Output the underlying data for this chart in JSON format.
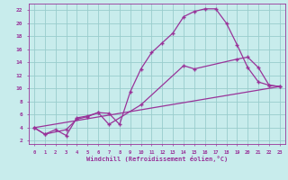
{
  "xlabel": "Windchill (Refroidissement éolien,°C)",
  "bg_color": "#c8ecec",
  "line_color": "#993399",
  "grid_color": "#99cccc",
  "x_ticks": [
    0,
    1,
    2,
    3,
    4,
    5,
    6,
    7,
    8,
    9,
    10,
    11,
    12,
    13,
    14,
    15,
    16,
    17,
    18,
    19,
    20,
    21,
    22,
    23
  ],
  "y_ticks": [
    2,
    4,
    6,
    8,
    10,
    12,
    14,
    16,
    18,
    20,
    22
  ],
  "xlim": [
    -0.5,
    23.5
  ],
  "ylim": [
    1.5,
    23.0
  ],
  "line1_x": [
    0,
    1,
    2,
    3,
    4,
    5,
    6,
    7,
    8,
    9,
    10,
    11,
    12,
    13,
    14,
    15,
    16,
    17,
    18,
    19,
    20,
    21,
    22,
    23
  ],
  "line1_y": [
    4.0,
    3.0,
    3.7,
    2.8,
    5.5,
    5.8,
    6.3,
    6.2,
    4.5,
    9.5,
    13.0,
    15.5,
    17.0,
    18.5,
    21.0,
    21.8,
    22.2,
    22.2,
    20.0,
    16.7,
    13.2,
    11.0,
    10.5,
    10.3
  ],
  "line2_x": [
    0,
    1,
    3,
    4,
    5,
    6,
    7,
    10,
    14,
    15,
    19,
    20,
    21,
    22,
    23
  ],
  "line2_y": [
    4.0,
    3.0,
    3.7,
    5.3,
    5.7,
    6.3,
    4.5,
    7.5,
    13.5,
    13.0,
    14.5,
    14.8,
    13.2,
    10.5,
    10.3
  ],
  "line3_x": [
    0,
    23
  ],
  "line3_y": [
    4.0,
    10.3
  ]
}
